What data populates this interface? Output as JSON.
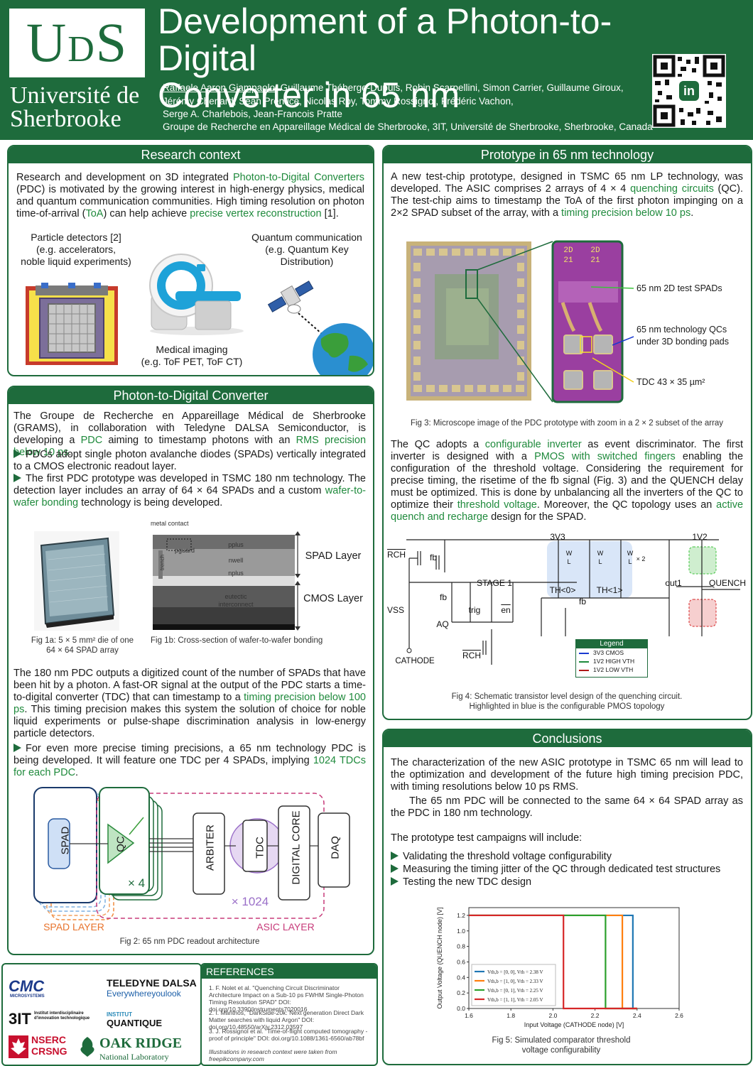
{
  "header": {
    "logo_text_big1": "U",
    "logo_text_small": "D",
    "logo_text_big2": "S",
    "university_line1": "Université de",
    "university_line2": "Sherbrooke",
    "title_line1": "Development of a Photon-to-Digital",
    "title_line2": "Converter in 65 nm",
    "first_author": "Raffaele Aaron Giampaolo",
    "authors_rest_line1": ", Guillaume Théberge-Dupuis, Robin Scarpellini, Simon Carrier, Guillaume Giroux,",
    "authors_line2": "Jérémy Chenard, Sean Prentice, Nicolas Roy, Tommy Rossignol, Frédéric Vachon,",
    "authors_line3": "Serge A. Charlebois, Jean-Francois Pratte",
    "affiliation": "Groupe de Recherche en Appareillage Médical de Sherbrooke, 3IT, Université de Sherbrooke, Sherbrooke, Canada",
    "qr_badge": "in"
  },
  "research": {
    "title": "Research context",
    "p1_a": "Research and development on 3D integrated ",
    "p1_b": "Photon-to-Digital Converters",
    "p1_c": " (PDC) is motivated by the growing interest in high-energy physics, medical and quantum communication communities. High timing resolution on photon time-of-arrival (",
    "p1_d": "ToA",
    "p1_e": ") can help achieve ",
    "p1_f": "precise vertex reconstruction",
    "p1_g": " [1].",
    "particle_l1": "Particle detectors [2]",
    "particle_l2": "(e.g. accelerators,",
    "particle_l3": "noble liquid experiments)",
    "quantum_l1": "Quantum communication",
    "quantum_l2": "(e.g. Quantum Key",
    "quantum_l3": "Distribution)",
    "medical_l1": "Medical imaging",
    "medical_l2": "(e.g. ToF PET, ToF CT)"
  },
  "pdc": {
    "title": "Photon-to-Digital Converter",
    "p1_a": "The Groupe de Recherche en Appareillage Médical de Sherbrooke (GRAMS), in collaboration with Teledyne DALSA Semiconductor, is developing a ",
    "p1_b": "PDC",
    "p1_c": " aiming to timestamp photons with an ",
    "p1_d": "RMS precision below 10 ps",
    "p1_e": ".",
    "p2": "PDCs adopt single photon avalanche diodes (SPADs) vertically integrated to a CMOS electronic readout layer.",
    "p3_a": "The first PDC prototype was developed in TSMC 180 nm technology. The detection layer includes an array of 64 × 64 SPADs and a custom ",
    "p3_b": "wafer-to-wafer bonding",
    "p3_c": " technology is being developed.",
    "fig1a_l1": "Fig 1a: 5 × 5 mm² die of one",
    "fig1a_l2": "64 × 64 SPAD array",
    "fig1b": "Fig 1b: Cross-section of wafer-to-wafer bonding",
    "sem_metal": "metal contact",
    "sem_pplus": "pplus",
    "sem_pguard": "pguard",
    "sem_nwell": "nwell",
    "sem_nplus": "nplus",
    "sem_trench": "trench",
    "sem_eutectic1": "eutectic",
    "sem_eutectic2": "interconnect",
    "spad_layer": "SPAD Layer",
    "cmos_layer": "CMOS Layer",
    "p4_a": "The 180 nm PDC outputs a digitized count of the number of SPADs that have been hit by a photon. A fast-OR signal at the output of the PDC starts a time-to-digital converter (TDC) that can timestamp to a ",
    "p4_b": "timing precision below 100 ps",
    "p4_c": ". This timing precision makes this system the solution of choice for noble liquid experiments or pulse-shape discrimination analysis in low-energy particle detectors.",
    "p5_a": "For even more precise timing precisions, a 65 nm technology PDC is being developed. It will feature one TDC per 4 SPADs, implying ",
    "p5_b": "1024 TDCs for each PDC",
    "p5_c": ".",
    "arch_spad": "SPAD",
    "arch_qc": "QC",
    "arch_x4": "× 4",
    "arch_arbiter": "ARBITER",
    "arch_tdc": "TDC",
    "arch_digital": "DIGITAL CORE",
    "arch_daq": "DAQ",
    "arch_x1024": "× 1024",
    "arch_spad_layer": "SPAD LAYER",
    "arch_asic_layer": "ASIC LAYER",
    "fig2": "Fig 2: 65 nm PDC readout architecture"
  },
  "sponsors": {
    "cmc": "CMC",
    "cmc_sub": "MICROSYSTEMS",
    "teledyne1": "TELEDYNE DALSA",
    "teledyne2": "Everywhereyoulook",
    "iiit": "3IT",
    "iiit_sub": "Institut interdisciplinaire d'innovation technologique",
    "iq1": "INSTITUT",
    "iq2": "QUANTIQUE",
    "nserc1": "NSERC",
    "nserc2": "CRSNG",
    "ornl1": "OAK RIDGE",
    "ornl2": "National Laboratory"
  },
  "references": {
    "title": "REFERENCES",
    "r1": "1.  F. Nolet et al. \"Quenching Circuit Discriminator Architecture Impact on a Sub-10 ps FWHM Single-Photon Timing Resolution SPAD\" DOI: doi.org/10.3390/instruments7020016",
    "r2": "2.  I. Manthos, \"DarkSide-20k: Next generation Direct Dark Matter searches with liquid Argon\" DOI: doi.org/10.48550/arXiv.2312.03597",
    "r3": "3.  J. Rossignol et al. \"Time-of-flight computed tomography - proof of principle\" DOI: doi.org/10.1088/1361-6560/ab78bf",
    "note": "Illustrations in research context were taken from freepikcompany.com"
  },
  "prototype": {
    "title": "Prototype in 65 nm technology",
    "p1_a": "A new test-chip prototype, designed in TSMC 65 nm LP technology, was developed. The ASIC comprises 2 arrays of 4 × 4 ",
    "p1_b": "quenching circuits",
    "p1_c": " (QC). The test-chip aims to timestamp the ToA of the first photon impinging on a 2×2 SPAD subset of the array, with a ",
    "p1_d": "timing precision below 10 ps",
    "p1_e": ".",
    "ann1": "65 nm 2D test SPADs",
    "ann2_l1": "65 nm technology QCs",
    "ann2_l2": "under 3D bonding pads",
    "ann3": "TDC 43 × 35 µm²",
    "zoom_lbl1": "2D",
    "zoom_lbl2": "2D",
    "zoom_lbl3": "21",
    "zoom_lbl4": "21",
    "fig3": "Fig 3: Microscope image of the PDC prototype with zoom in a 2 × 2 subset of the array",
    "p2_a": "The QC adopts a ",
    "p2_b": "configurable inverter",
    "p2_c": " as event discriminator. The first inverter is designed with a ",
    "p2_d": "PMOS with switched fingers",
    "p2_e": " enabling the configuration of the threshold voltage. Considering the requirement for precise timing, the risetime of the fb signal (Fig. 3) and the QUENCH delay must be optimized. This is done by unbalancing all the inverters of the QC to optimize their ",
    "p2_f": "threshold voltage",
    "p2_g": ". Moreover, the QC topology uses an ",
    "p2_h": "active quench and recharge",
    "p2_i": " design for the SPAD.",
    "sch_3v3": "3V3",
    "sch_1v2": "1V2",
    "sch_rch": "RCH",
    "sch_fb": "fb",
    "sch_stage1": "STAGE 1",
    "sch_vss": "VSS",
    "sch_aq": "AQ",
    "sch_trig": "trig",
    "sch_en": "en",
    "sch_cathode": "CATHODE",
    "sch_rch2": "RCH",
    "sch_th0": "TH<0>",
    "sch_th1": "TH<1>",
    "sch_fb2": "fb",
    "sch_out1": "out1",
    "sch_quench": "QUENCH",
    "sch_w": "W",
    "sch_l": "L",
    "sch_x2": "× 2",
    "legend_title": "Legend",
    "legend_1": "3V3 CMOS",
    "legend_2": "1V2 HIGH VTH",
    "legend_3": "1V2 LOW  VTH",
    "fig4_l1": "Fig 4: Schematic transistor level design of the quenching circuit.",
    "fig4_l2": "Highlighted in blue is the configurable PMOS topology"
  },
  "conclusions": {
    "title": "Conclusions",
    "p1": "The characterization of the new ASIC prototype in TSMC 65 nm will lead to the optimization and development of the future high timing precision PDC, with timing resolutions below 10 ps RMS.",
    "p2": "The 65 nm PDC will be connected to the same 64 × 64 SPAD array as the PDC in 180 nm technology.",
    "p3": "The prototype test campaigns will include:",
    "b1": "Validating the threshold voltage configurability",
    "b2": "Measuring the timing jitter of the QC through dedicated test structures",
    "b3": "Testing the new TDC design",
    "fig5_l1": "Fig 5: Simulated comparator threshold",
    "fig5_l2": "voltage configurability"
  },
  "chart_data": {
    "type": "line",
    "xlabel": "Input Voltage (CATHODE node) [V]",
    "ylabel": "Output Voltage (QUENCH node) [V]",
    "xlim": [
      1.6,
      2.6
    ],
    "ylim": [
      0.0,
      1.3
    ],
    "xticks": [
      "1.6",
      "1.8",
      "2.0",
      "2.2",
      "2.4",
      "2.6"
    ],
    "yticks": [
      "0.0",
      "0.2",
      "0.4",
      "0.6",
      "0.8",
      "1.0",
      "1.2"
    ],
    "legend_position": "bottom-left",
    "series": [
      {
        "name": "Vth,b = [0, 0], Vth = 2.38 V",
        "color": "#1f77b4",
        "x": [
          1.6,
          2.38,
          2.38,
          2.4
        ],
        "y": [
          1.2,
          1.2,
          0.0,
          0.0
        ]
      },
      {
        "name": "Vth,b = [1, 0], Vth = 2.33 V",
        "color": "#ff7f0e",
        "x": [
          1.6,
          2.33,
          2.33,
          2.4
        ],
        "y": [
          1.2,
          1.2,
          0.0,
          0.0
        ]
      },
      {
        "name": "Vth,b = [0, 1], Vth = 2.25 V",
        "color": "#2ca02c",
        "x": [
          1.6,
          2.25,
          2.25,
          2.4
        ],
        "y": [
          1.2,
          1.2,
          0.0,
          0.0
        ]
      },
      {
        "name": "Vth,b = [1, 1], Vth = 2.05 V",
        "color": "#d62728",
        "x": [
          1.6,
          2.05,
          2.05,
          2.4
        ],
        "y": [
          1.2,
          1.2,
          0.0,
          0.0
        ]
      }
    ]
  }
}
